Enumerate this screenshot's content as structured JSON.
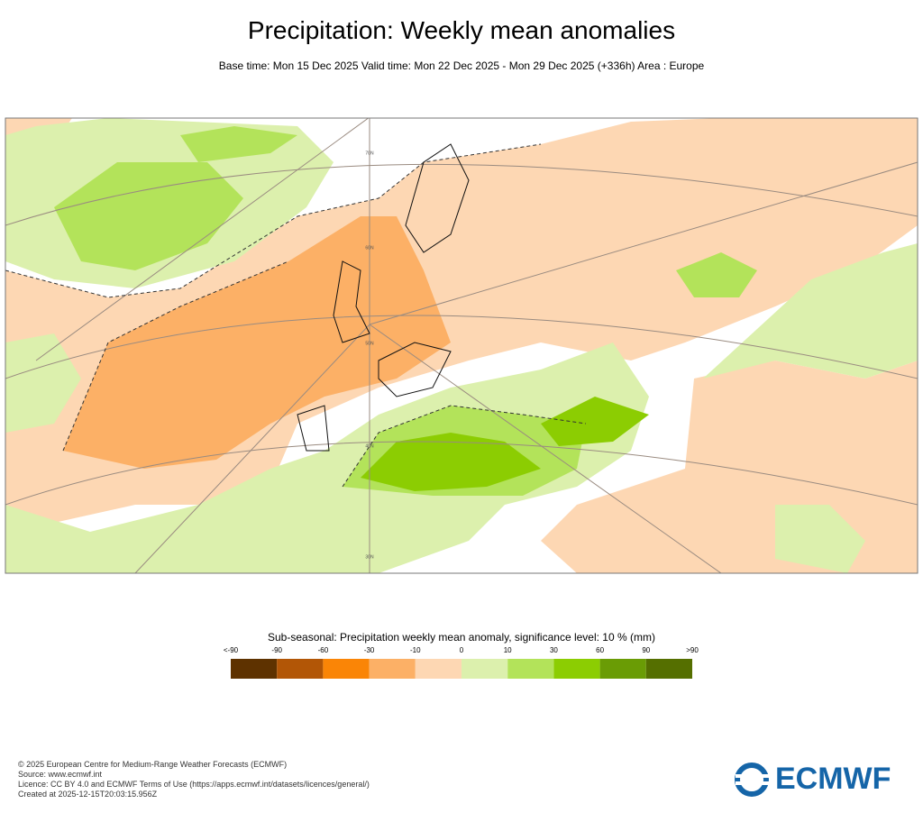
{
  "header": {
    "title": "Precipitation: Weekly mean anomalies",
    "subtitle": "Base time: Mon 15 Dec 2025 Valid time: Mon 22 Dec 2025 - Mon 29 Dec 2025 (+336h) Area : Europe"
  },
  "map": {
    "graticule_labels": [
      "70N",
      "60N",
      "50N",
      "40N",
      "30N"
    ]
  },
  "legend": {
    "title": "Sub-seasonal: Precipitation weekly mean anomaly, significance level: 10 % (mm)",
    "labels": [
      "<-90",
      "-90",
      "-60",
      "-30",
      "-10",
      "0",
      "10",
      "30",
      "60",
      "90",
      ">90"
    ],
    "colors": [
      "#5e3200",
      "#b25606",
      "#fa8506",
      "#fcb066",
      "#fdd7b3",
      "#dcf0ad",
      "#b3e35a",
      "#8ccd02",
      "#6a9c05",
      "#556f00"
    ]
  },
  "footer": {
    "lines": [
      "© 2025 European Centre for Medium-Range Weather Forecasts (ECMWF)",
      "Source: www.ecmwf.int",
      "Licence: CC BY 4.0 and ECMWF Terms of Use (https://apps.ecmwf.int/datasets/licences/general/)",
      "Created at 2025-12-15T20:03:15.956Z"
    ],
    "logo": "ECMWF"
  }
}
